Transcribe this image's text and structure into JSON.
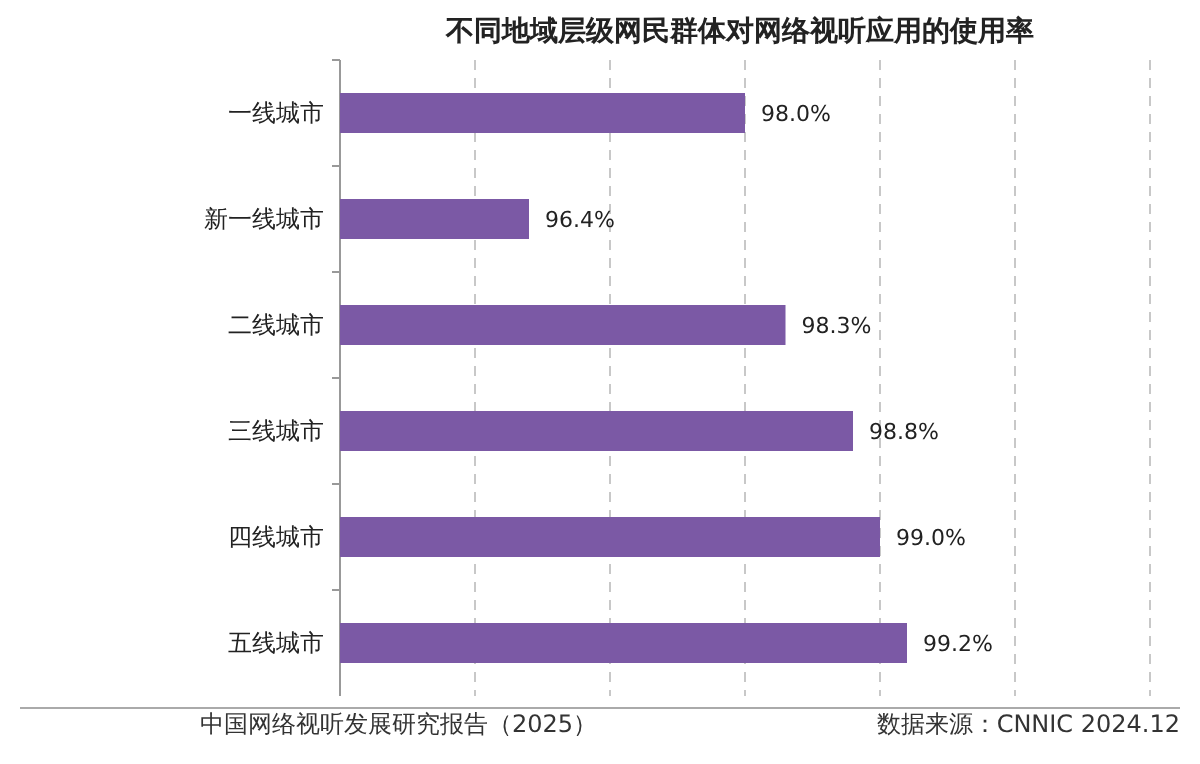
{
  "chart_data": {
    "type": "bar",
    "orientation": "horizontal",
    "title": "不同地域层级网民群体对网络视听应用的使用率",
    "categories": [
      "一线城市",
      "新一线城市",
      "二线城市",
      "三线城市",
      "四线城市",
      "五线城市"
    ],
    "values": [
      98.0,
      96.4,
      98.3,
      98.8,
      99.0,
      99.2
    ],
    "value_labels": [
      "98.0%",
      "96.4%",
      "98.3%",
      "98.8%",
      "99.0%",
      "99.2%"
    ],
    "color": "#7b59a5",
    "xlim": [
      95,
      101
    ],
    "xticks": [
      {
        "value": 95,
        "label": null
      },
      {
        "value": 96,
        "label": null
      },
      {
        "value": 97,
        "label": null
      },
      {
        "value": 98,
        "label": null
      },
      {
        "value": 99,
        "label": null
      },
      {
        "value": 100,
        "label": null
      },
      {
        "value": 101,
        "label": null
      }
    ],
    "grid": "x",
    "tick_labels": "y",
    "annotations": [
      "中国网络视听发展研究报告（2025）",
      "数据来源：CNNIC  2024.12"
    ]
  }
}
